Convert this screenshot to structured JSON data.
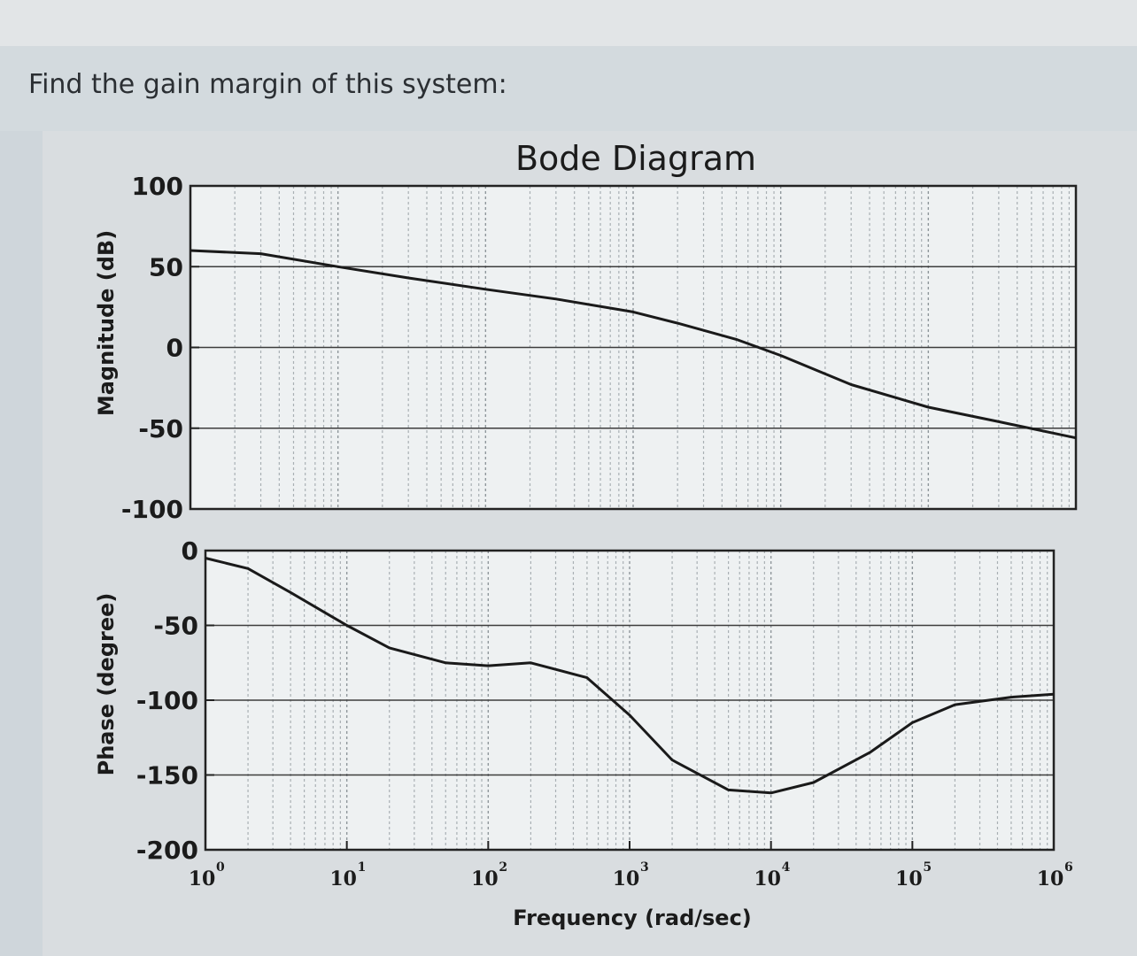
{
  "question": "Find the gain margin of this system:",
  "chart_data": [
    {
      "type": "line",
      "title": "Bode Diagram",
      "ylabel": "Magnitude (dB)",
      "xscale": "log",
      "xlim": [
        1,
        1000000
      ],
      "ylim": [
        -100,
        100
      ],
      "yticks": [
        "100",
        "50",
        "0",
        "-50",
        "-100"
      ],
      "grid": true,
      "series": [
        {
          "x": [
            1,
            3,
            10,
            30,
            100,
            300,
            1000,
            2000,
            5000,
            10000,
            30000,
            100000,
            300000,
            1000000
          ],
          "values": [
            60,
            58,
            50,
            43,
            36,
            30,
            22,
            15,
            5,
            -5,
            -23,
            -37,
            -46,
            -56
          ]
        }
      ]
    },
    {
      "type": "line",
      "ylabel": "Phase (degree)",
      "xlabel": "Frequency (rad/sec)",
      "xscale": "log",
      "xlim": [
        1,
        1000000
      ],
      "ylim": [
        -200,
        0
      ],
      "yticks": [
        "0",
        "-50",
        "-100",
        "-150",
        "-200"
      ],
      "xticks": [
        "10",
        "10",
        "10",
        "10",
        "10",
        "10",
        "10"
      ],
      "xtick_exponents": [
        "0",
        "1",
        "2",
        "3",
        "4",
        "5",
        "6"
      ],
      "grid": true,
      "series": [
        {
          "x": [
            1,
            2,
            4,
            10,
            20,
            50,
            100,
            200,
            500,
            1000,
            2000,
            5000,
            10000,
            20000,
            50000,
            100000,
            200000,
            500000,
            1000000
          ],
          "values": [
            -5,
            -12,
            -28,
            -50,
            -65,
            -75,
            -77,
            -75,
            -85,
            -110,
            -140,
            -160,
            -162,
            -155,
            -135,
            -115,
            -103,
            -98,
            -96
          ]
        }
      ]
    }
  ]
}
